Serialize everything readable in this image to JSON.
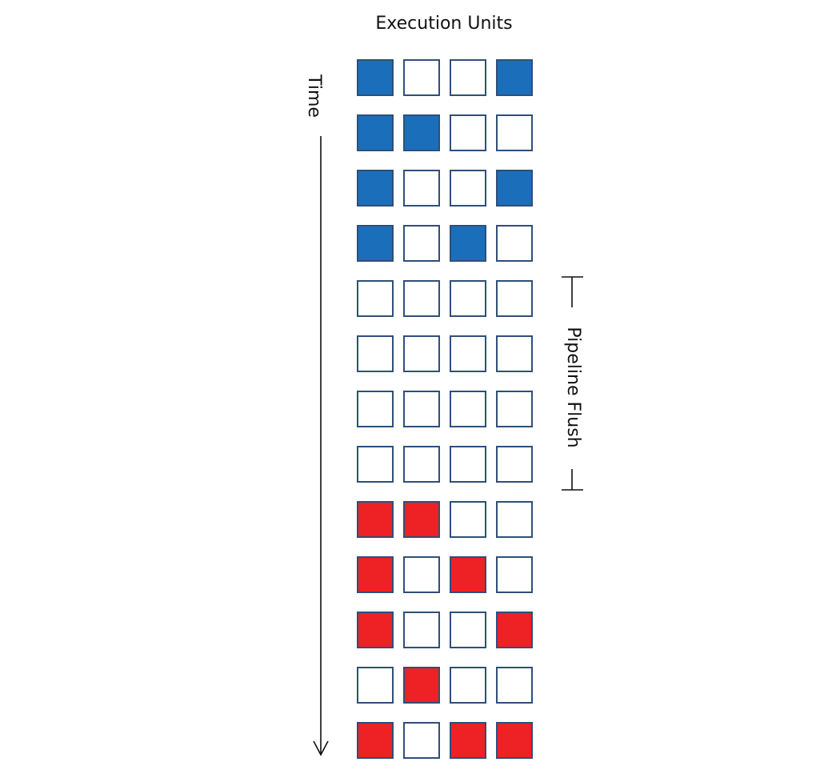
{
  "diagram": {
    "title": "Execution Units",
    "time_label": "Time",
    "flush_label": "Pipeline Flush",
    "colors": {
      "empty": "#ffffff",
      "blue": "#1b6fba",
      "red": "#ee2125",
      "border": "#2e4f7a"
    },
    "grid": [
      [
        "blue",
        "empty",
        "empty",
        "blue"
      ],
      [
        "blue",
        "blue",
        "empty",
        "empty"
      ],
      [
        "blue",
        "empty",
        "empty",
        "blue"
      ],
      [
        "blue",
        "empty",
        "blue",
        "empty"
      ],
      [
        "empty",
        "empty",
        "empty",
        "empty"
      ],
      [
        "empty",
        "empty",
        "empty",
        "empty"
      ],
      [
        "empty",
        "empty",
        "empty",
        "empty"
      ],
      [
        "empty",
        "empty",
        "empty",
        "empty"
      ],
      [
        "red",
        "red",
        "empty",
        "empty"
      ],
      [
        "red",
        "empty",
        "red",
        "empty"
      ],
      [
        "red",
        "empty",
        "empty",
        "red"
      ],
      [
        "empty",
        "red",
        "empty",
        "empty"
      ],
      [
        "red",
        "empty",
        "red",
        "red"
      ]
    ],
    "flush_rows": [
      4,
      7
    ]
  }
}
